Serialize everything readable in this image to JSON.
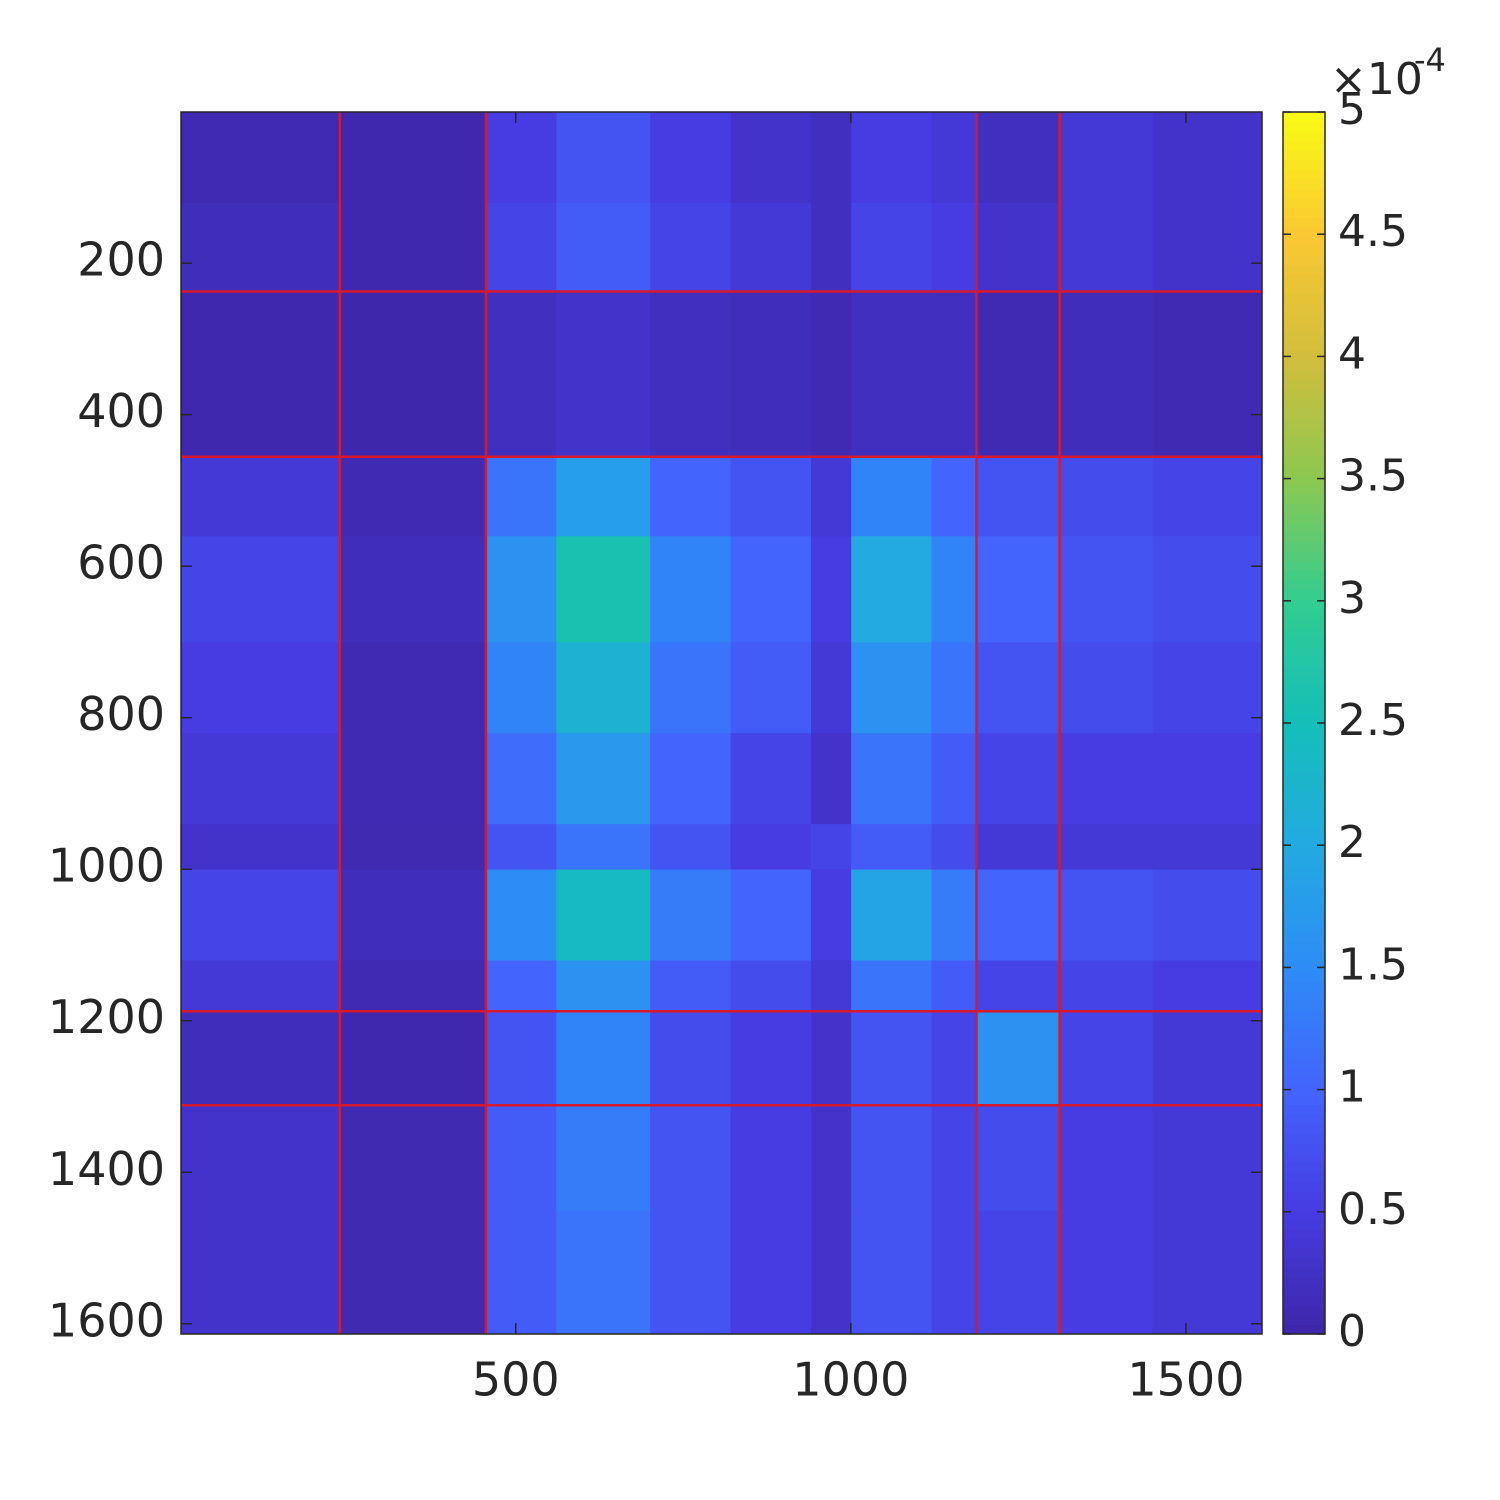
{
  "chart_data": {
    "type": "heatmap",
    "colormap": "parula",
    "y_direction": "reverse",
    "xlim": [
      0.5,
      1613.5
    ],
    "ylim": [
      0.5,
      1613.5
    ],
    "xticks": [
      500,
      1000,
      1500
    ],
    "yticks": [
      200,
      400,
      600,
      800,
      1000,
      1200,
      1400,
      1600
    ],
    "x_edges": [
      0.5,
      120.5,
      237.5,
      455.5,
      560.5,
      700.5,
      820.5,
      940.5,
      1000.5,
      1120.5,
      1187.5,
      1311.5,
      1450.5,
      1613.5
    ],
    "y_edges": [
      0.5,
      120.5,
      237.5,
      455.5,
      560.5,
      700.5,
      820.5,
      940.5,
      1000.5,
      1120.5,
      1187.5,
      1311.5,
      1450.5,
      1613.5
    ],
    "z": [
      [
        1e-05,
        1e-05,
        5e-06,
        5e-05,
        8e-05,
        5e-05,
        3e-05,
        2e-05,
        5e-05,
        4e-05,
        2e-05,
        4e-05,
        3e-05
      ],
      [
        1.5e-05,
        1.5e-05,
        5e-06,
        6e-05,
        9e-05,
        6e-05,
        4e-05,
        2e-05,
        6e-05,
        5e-05,
        3e-05,
        4e-05,
        3e-05
      ],
      [
        5e-06,
        5e-06,
        3e-06,
        2e-05,
        3e-05,
        2e-05,
        1.5e-05,
        1e-05,
        2e-05,
        2e-05,
        1e-05,
        1.5e-05,
        1e-05
      ],
      [
        4e-05,
        4e-05,
        1e-05,
        0.00012,
        0.00018,
        0.0001,
        8e-05,
        4e-05,
        0.00014,
        0.0001,
        8e-05,
        7e-05,
        6e-05
      ],
      [
        6e-05,
        6e-05,
        1.5e-05,
        0.00016,
        0.00026,
        0.00014,
        0.0001,
        5e-05,
        0.0002,
        0.00014,
        0.0001,
        8e-05,
        7e-05
      ],
      [
        5e-05,
        5e-05,
        1e-05,
        0.00014,
        0.00022,
        0.00012,
        9e-05,
        4e-05,
        0.00016,
        0.00012,
        8e-05,
        7e-05,
        6e-05
      ],
      [
        4e-05,
        4e-05,
        1e-05,
        0.00011,
        0.00017,
        0.0001,
        6e-05,
        3e-05,
        0.00012,
        9e-05,
        6e-05,
        5e-05,
        5e-05
      ],
      [
        3e-05,
        3e-05,
        8e-06,
        8e-05,
        0.00012,
        8e-05,
        5e-05,
        6e-05,
        9e-05,
        7e-05,
        4e-05,
        4e-05,
        4e-05
      ],
      [
        6e-05,
        6e-05,
        1.5e-05,
        0.00015,
        0.00024,
        0.00013,
        0.0001,
        5e-05,
        0.00019,
        0.00013,
        0.0001,
        8e-05,
        7e-05
      ],
      [
        4e-05,
        4e-05,
        1e-05,
        0.0001,
        0.00016,
        9e-05,
        7e-05,
        4e-05,
        0.00012,
        9e-05,
        6e-05,
        6e-05,
        5e-05
      ],
      [
        1.5e-05,
        1.5e-05,
        5e-06,
        8e-05,
        0.00014,
        7e-05,
        5e-05,
        3e-05,
        8e-05,
        6e-05,
        0.00016,
        6e-05,
        4e-05
      ],
      [
        3e-05,
        3e-05,
        8e-06,
        9e-05,
        0.00013,
        8e-05,
        5e-05,
        3e-05,
        8e-05,
        6e-05,
        7e-05,
        5e-05,
        4e-05
      ],
      [
        3e-05,
        3e-05,
        8e-06,
        9e-05,
        0.00012,
        8e-05,
        5e-05,
        3e-05,
        8e-05,
        6e-05,
        6e-05,
        5e-05,
        4e-05
      ]
    ],
    "boundaries": [
      237.5,
      455.5,
      1187.5,
      1311.5
    ],
    "boundary_color": "#d7192d",
    "clim": [
      0,
      0.0005
    ],
    "colorbar_ticks": [
      {
        "value": 0,
        "label": "0"
      },
      {
        "value": 5e-05,
        "label": "0.5"
      },
      {
        "value": 0.0001,
        "label": "1"
      },
      {
        "value": 0.00015,
        "label": "1.5"
      },
      {
        "value": 0.0002,
        "label": "2"
      },
      {
        "value": 0.00025,
        "label": "2.5"
      },
      {
        "value": 0.0003,
        "label": "3"
      },
      {
        "value": 0.00035,
        "label": "3.5"
      },
      {
        "value": 0.0004,
        "label": "4"
      },
      {
        "value": 0.00045,
        "label": "4.5"
      },
      {
        "value": 0.0005,
        "label": "5"
      }
    ],
    "colorbar_multiplier": "×10",
    "colorbar_exponent": "-4"
  }
}
